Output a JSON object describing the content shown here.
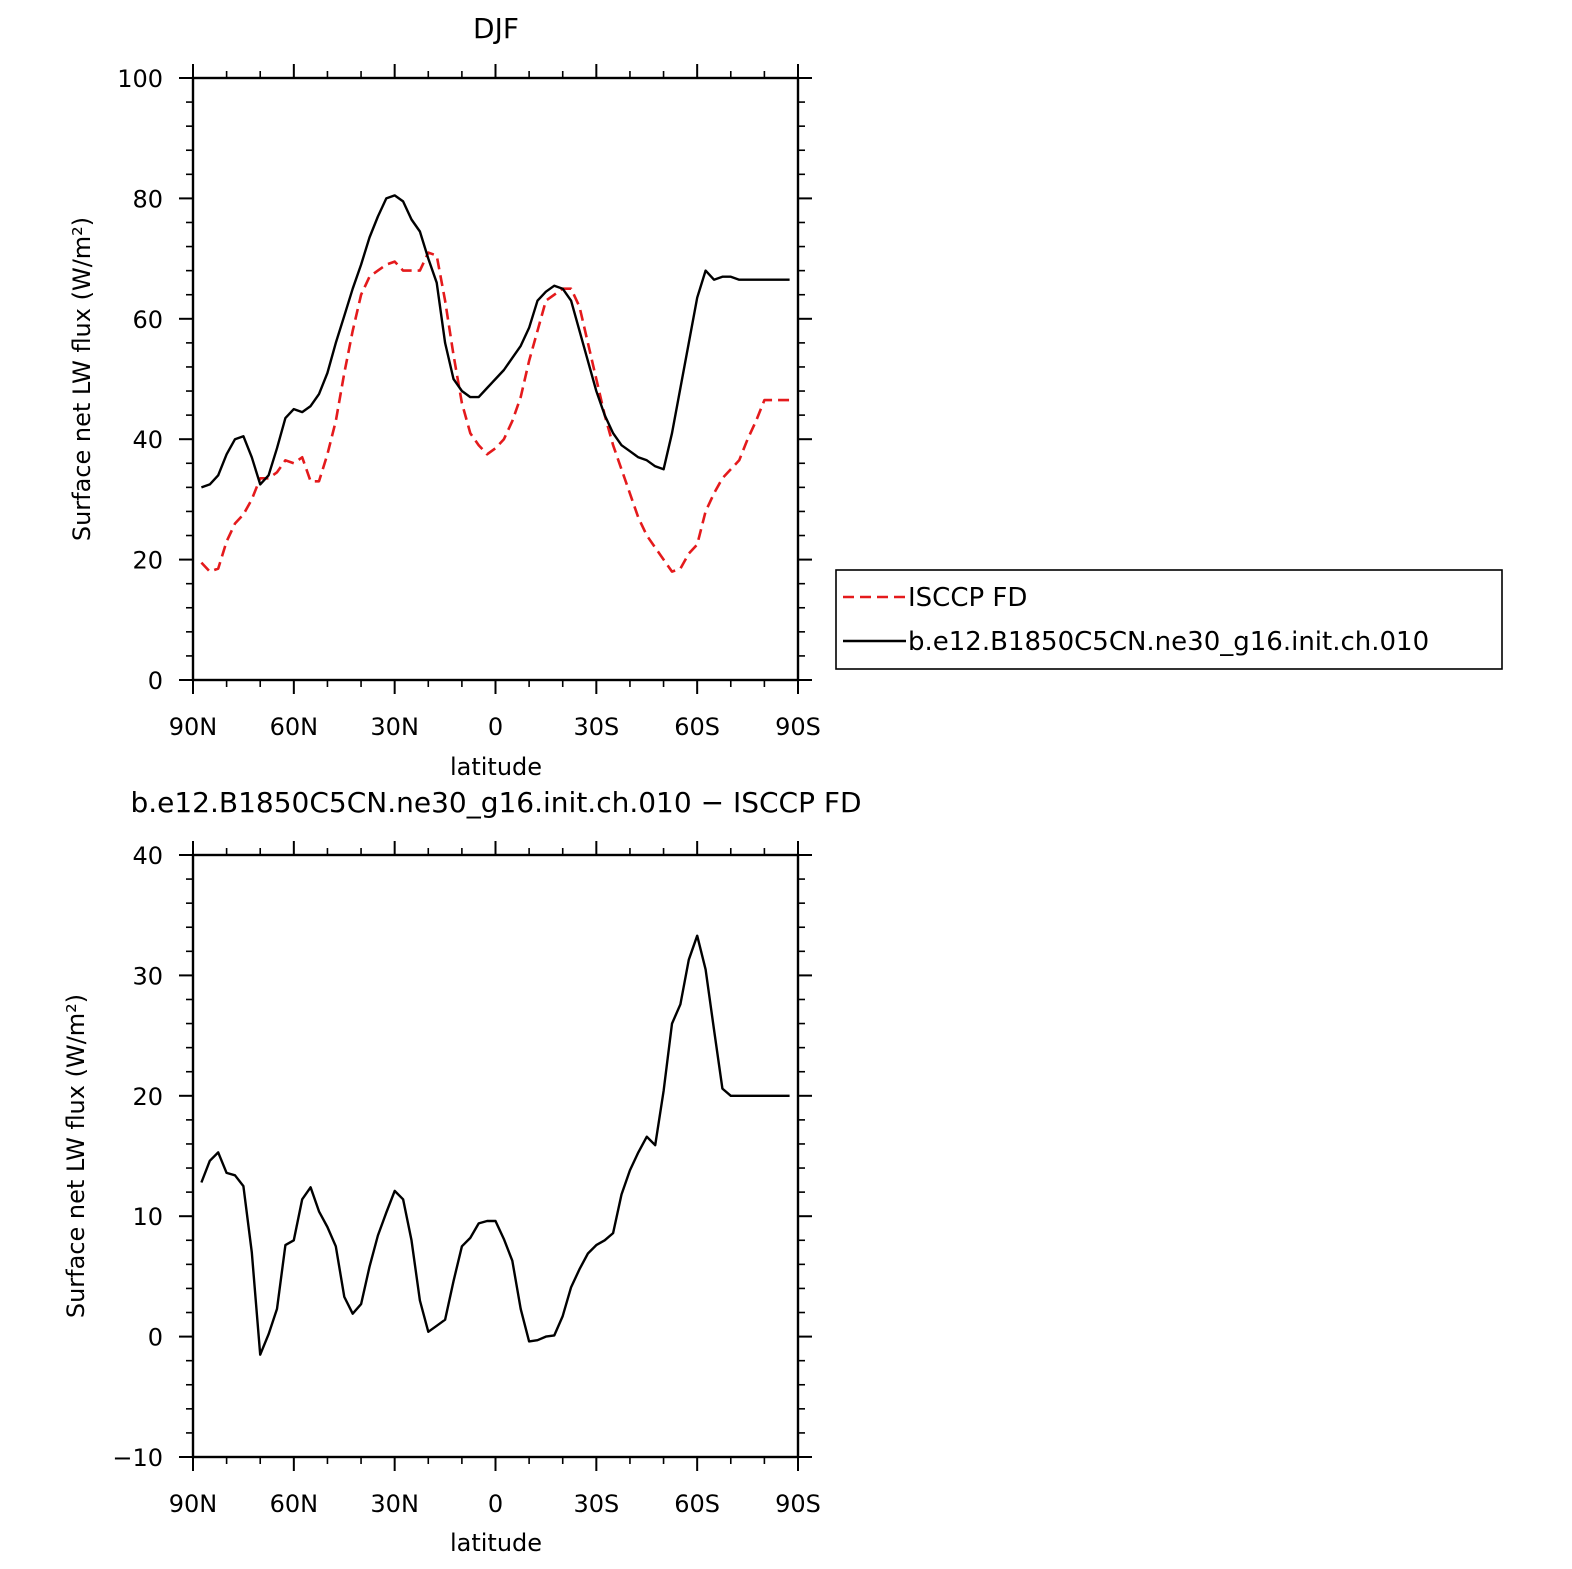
{
  "chart_data": [
    {
      "type": "line",
      "title": "DJF",
      "xlabel": "latitude",
      "ylabel": "Surface net LW flux (W/m²)",
      "ylim": [
        0,
        100
      ],
      "xlim": [
        90,
        -90
      ],
      "x_ticks": [
        "90N",
        "60N",
        "30N",
        "0",
        "30S",
        "60S",
        "90S"
      ],
      "y_ticks": [
        "0",
        "20",
        "40",
        "60",
        "80",
        "100"
      ],
      "legend_position": "right",
      "series": [
        {
          "name": "ISCCP FD",
          "color": "#e41a1c",
          "style": "dashed",
          "x": [
            87.5,
            85,
            82.5,
            80,
            77.5,
            75,
            72.5,
            70,
            67.5,
            65,
            62.5,
            60,
            57.5,
            55,
            52.5,
            50,
            47.5,
            45,
            42.5,
            40,
            37.5,
            35,
            32.5,
            30,
            27.5,
            25,
            22.5,
            20,
            17.5,
            15,
            12.5,
            10,
            7.5,
            5,
            2.5,
            0,
            -2.5,
            -5,
            -7.5,
            -10,
            -12.5,
            -15,
            -17.5,
            -20,
            -22.5,
            -25,
            -27.5,
            -30,
            -32.5,
            -35,
            -37.5,
            -40,
            -42.5,
            -45,
            -47.5,
            -50,
            -52.5,
            -55,
            -57.5,
            -60,
            -62.5,
            -65,
            -67.5,
            -70,
            -72.5,
            -75,
            -77.5,
            -80,
            -82.5,
            -85,
            -87.5
          ],
          "y": [
            19.5,
            18,
            18.5,
            23,
            26,
            27.5,
            30,
            33.5,
            33.5,
            34.5,
            36.5,
            36,
            37,
            33,
            33,
            37.5,
            43,
            51,
            58,
            64,
            67,
            68,
            69,
            69.5,
            68,
            68,
            68,
            71,
            70.5,
            63,
            54,
            46,
            41,
            39,
            37.5,
            38.5,
            40,
            43,
            47,
            53,
            58,
            63,
            64,
            65,
            65,
            62,
            56,
            50,
            44,
            39,
            35,
            31,
            27,
            24,
            22,
            20,
            18,
            18.5,
            21,
            22.5,
            28,
            31,
            33.5,
            35,
            36.5,
            40,
            43,
            46.5,
            46.5,
            46.5,
            46.5
          ]
        },
        {
          "name": "b.e12.B1850C5CN.ne30_g16.init.ch.010",
          "color": "#000000",
          "style": "solid",
          "x": [
            87.5,
            85,
            82.5,
            80,
            77.5,
            75,
            72.5,
            70,
            67.5,
            65,
            62.5,
            60,
            57.5,
            55,
            52.5,
            50,
            47.5,
            45,
            42.5,
            40,
            37.5,
            35,
            32.5,
            30,
            27.5,
            25,
            22.5,
            20,
            17.5,
            15,
            12.5,
            10,
            7.5,
            5,
            2.5,
            0,
            -2.5,
            -5,
            -7.5,
            -10,
            -12.5,
            -15,
            -17.5,
            -20,
            -22.5,
            -25,
            -27.5,
            -30,
            -32.5,
            -35,
            -37.5,
            -40,
            -42.5,
            -45,
            -47.5,
            -50,
            -52.5,
            -55,
            -57.5,
            -60,
            -62.5,
            -65,
            -67.5,
            -70,
            -72.5,
            -75,
            -77.5,
            -80,
            -82.5,
            -85,
            -87.5
          ],
          "y": [
            32,
            32.5,
            34,
            37.5,
            40,
            40.5,
            37,
            32.5,
            34,
            38.5,
            43.5,
            45,
            44.5,
            45.5,
            47.5,
            51,
            56,
            60.5,
            65,
            69,
            73.5,
            77,
            80,
            80.5,
            79.5,
            76.5,
            74.5,
            70,
            66,
            56,
            50,
            48,
            47,
            47,
            48.5,
            50,
            51.5,
            53.5,
            55.5,
            58.5,
            63,
            64.5,
            65.5,
            65,
            63,
            58,
            53,
            48,
            44,
            41,
            39,
            38,
            37,
            36.5,
            35.5,
            35,
            41,
            48.5,
            56,
            63.5,
            68,
            66.5,
            67,
            67,
            66.5,
            66.5,
            66.5,
            66.5,
            66.5,
            66.5,
            66.5
          ]
        }
      ]
    },
    {
      "type": "line",
      "title": "b.e12.B1850C5CN.ne30_g16.init.ch.010 − ISCCP FD",
      "xlabel": "latitude",
      "ylabel": "Surface net LW flux (W/m²)",
      "ylim": [
        -10,
        40
      ],
      "xlim": [
        90,
        -90
      ],
      "x_ticks": [
        "90N",
        "60N",
        "30N",
        "0",
        "30S",
        "60S",
        "90S"
      ],
      "y_ticks": [
        "−10",
        "0",
        "10",
        "20",
        "30",
        "40"
      ],
      "series": [
        {
          "color": "#000000",
          "style": "solid",
          "x": [
            87.5,
            85,
            82.5,
            80,
            77.5,
            75,
            72.5,
            70,
            67.5,
            65,
            62.5,
            60,
            57.5,
            55,
            52.5,
            50,
            47.5,
            45,
            42.5,
            40,
            37.5,
            35,
            32.5,
            30,
            27.5,
            25,
            22.5,
            20,
            17.5,
            15,
            12.5,
            10,
            7.5,
            5,
            2.5,
            0,
            -2.5,
            -5,
            -7.5,
            -10,
            -12.5,
            -15,
            -17.5,
            -20,
            -22.5,
            -25,
            -27.5,
            -30,
            -32.5,
            -35,
            -37.5,
            -40,
            -42.5,
            -45,
            -47.5,
            -50,
            -52.5,
            -55,
            -57.5,
            -60,
            -62.5,
            -65,
            -67.5,
            -70,
            -72.5,
            -75,
            -77.5,
            -80,
            -82.5,
            -85,
            -87.5
          ],
          "y": [
            12.8,
            14.6,
            15.3,
            13.6,
            13.4,
            12.5,
            7,
            -1.5,
            0.2,
            2.3,
            7.6,
            8,
            11.4,
            12.4,
            10.4,
            9.1,
            7.5,
            3.3,
            1.9,
            2.7,
            5.8,
            8.4,
            10.3,
            12.1,
            11.4,
            8,
            3,
            0.4,
            0.9,
            1.4,
            4.6,
            7.5,
            8.2,
            9.4,
            9.6,
            9.6,
            8.1,
            6.3,
            2.3,
            -0.4,
            -0.3,
            0,
            0.1,
            1.7,
            4.1,
            5.6,
            6.9,
            7.6,
            8,
            8.6,
            11.8,
            13.8,
            15.3,
            16.6,
            15.9,
            20.4,
            26,
            27.6,
            31.3,
            33.3,
            30.5,
            25.5,
            20.6,
            20,
            20,
            20,
            20,
            20,
            20,
            20,
            20
          ]
        }
      ]
    }
  ]
}
